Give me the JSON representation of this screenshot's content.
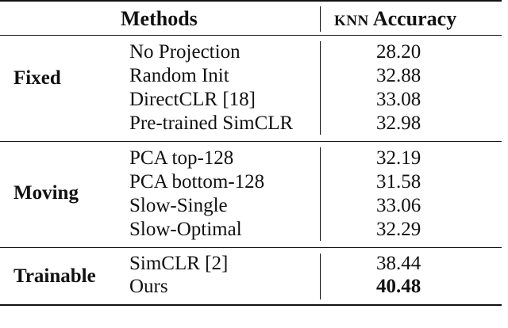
{
  "header": {
    "methods": "Methods",
    "knn": "KNN",
    "accuracy": "Accuracy"
  },
  "groups": [
    {
      "label": "Fixed",
      "rows": [
        {
          "method": "No Projection",
          "accuracy": "28.20"
        },
        {
          "method": "Random Init",
          "accuracy": "32.88"
        },
        {
          "method": "DirectCLR [18]",
          "accuracy": "33.08"
        },
        {
          "method": "Pre-trained SimCLR",
          "accuracy": "32.98"
        }
      ]
    },
    {
      "label": "Moving",
      "rows": [
        {
          "method": "PCA top-128",
          "accuracy": "32.19"
        },
        {
          "method": "PCA bottom-128",
          "accuracy": "31.58"
        },
        {
          "method": "Slow-Single",
          "accuracy": "33.06"
        },
        {
          "method": "Slow-Optimal",
          "accuracy": "32.29"
        }
      ]
    },
    {
      "label": "Trainable",
      "rows": [
        {
          "method": "SimCLR [2]",
          "accuracy": "38.44"
        },
        {
          "method": "Ours",
          "accuracy": "40.48",
          "best": true
        }
      ]
    }
  ]
}
